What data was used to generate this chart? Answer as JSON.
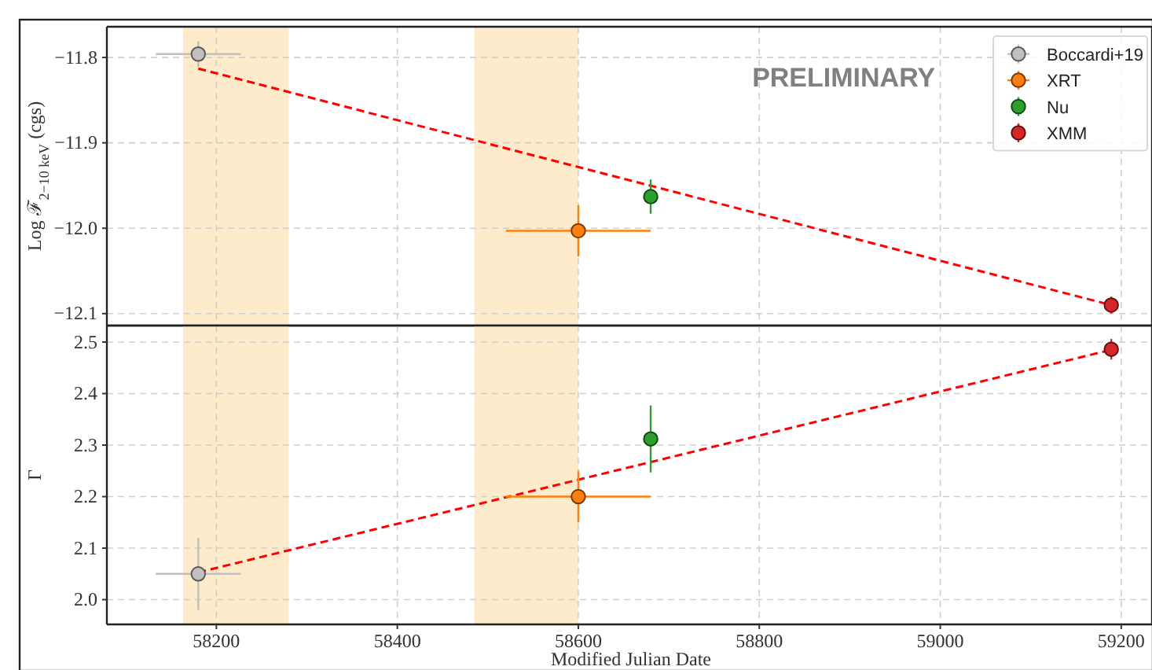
{
  "chart_data": [
    {
      "type": "scatter",
      "ylabel": "Log ℱ$_{2−10 keV}$ (cgs)",
      "annotations": [
        "PRELIMINARY"
      ],
      "xlim": [
        58079,
        59234
      ],
      "xticks": [
        58200,
        58400,
        58600,
        58800,
        59000,
        59200
      ],
      "ylim": [
        -12.114,
        -11.764
      ],
      "yticks": [
        -11.8,
        -11.9,
        {
          "value": -12,
          "label": "−12.0"
        },
        -12.1
      ],
      "tick_labels": "y",
      "grid": true,
      "legend": "top right",
      "marker": "circle",
      "bands": [
        {
          "axis": "x",
          "from": 58163,
          "to": 58280,
          "color": "#fdebcb"
        },
        {
          "axis": "x",
          "from": 58485,
          "to": 58600,
          "color": "#fdebcb"
        }
      ],
      "series": [
        {
          "name": "Boccardi+19",
          "color": "#c0c0c0",
          "x": [
            58180
          ],
          "values": [
            -11.796
          ],
          "errors": [
            0.015
          ],
          "xerrors": [
            47
          ]
        },
        {
          "name": "XRT",
          "color": "#ff7f0e",
          "x": [
            58600
          ],
          "values": [
            -12.003
          ],
          "errors": [
            0.03
          ],
          "xerrors": [
            80
          ]
        },
        {
          "name": "Nu",
          "color": "#2ca02c",
          "x": [
            58680
          ],
          "values": [
            -11.963
          ],
          "errors": [
            0.02
          ]
        },
        {
          "name": "XMM",
          "color": "#d62728",
          "x": [
            59189
          ],
          "values": [
            -12.09
          ],
          "errors": [
            0.01
          ]
        },
        {
          "type": "line",
          "color": "#ff0000",
          "line_style": "dashed",
          "marker": "none",
          "x": [
            58180,
            59189
          ],
          "values": [
            -11.813,
            -12.09
          ]
        }
      ]
    },
    {
      "type": "scatter",
      "xlabel": "Modified Julian Date",
      "ylabel": "Γ",
      "xlim": [
        58079,
        59234
      ],
      "xticks": [
        58200,
        58400,
        58600,
        58800,
        59000,
        59200
      ],
      "ylim": [
        1.952,
        2.532
      ],
      "yticks": [
        {
          "value": 2,
          "label": "2.0"
        },
        2.1,
        2.2,
        2.3,
        2.4,
        2.5
      ],
      "grid": true,
      "marker": "circle",
      "bands": [
        {
          "axis": "x",
          "from": 58163,
          "to": 58280,
          "color": "#fdebcb"
        },
        {
          "axis": "x",
          "from": 58485,
          "to": 58600,
          "color": "#fdebcb"
        }
      ],
      "series": [
        {
          "color": "#c0c0c0",
          "x": [
            58180
          ],
          "values": [
            2.05
          ],
          "errors": [
            0.07
          ],
          "xerrors": [
            47
          ]
        },
        {
          "color": "#ff7f0e",
          "x": [
            58600
          ],
          "values": [
            2.2
          ],
          "errors": [
            0.05
          ],
          "xerrors": [
            80
          ]
        },
        {
          "color": "#2ca02c",
          "x": [
            58680
          ],
          "values": [
            2.312
          ],
          "errors": [
            0.065
          ]
        },
        {
          "color": "#d62728",
          "x": [
            59189
          ],
          "values": [
            2.486
          ],
          "errors": [
            0.02
          ]
        },
        {
          "type": "line",
          "color": "#ff0000",
          "line_style": "dashed",
          "marker": "none",
          "x": [
            58180,
            59189
          ],
          "values": [
            2.053,
            2.485
          ]
        }
      ]
    }
  ]
}
